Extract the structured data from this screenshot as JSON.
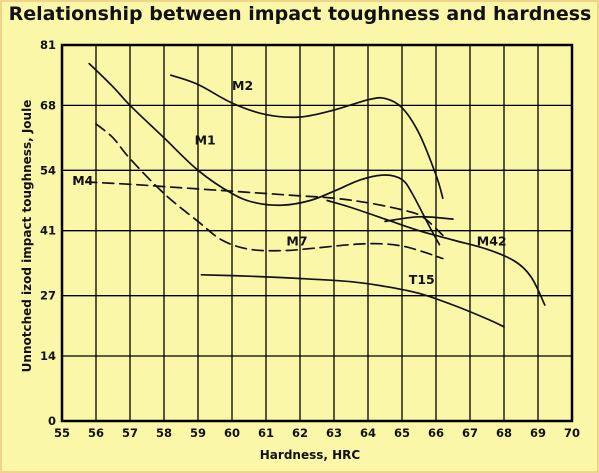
{
  "chart_data": {
    "type": "line",
    "title": "Relationship between impact toughness and hardness",
    "xlabel": "Hardness, HRC",
    "ylabel": "Unnotched izod impact toughness, Joule",
    "xlim": [
      55,
      70
    ],
    "ylim": [
      0,
      81
    ],
    "xticks": [
      55,
      56,
      57,
      58,
      59,
      60,
      61,
      62,
      63,
      64,
      65,
      66,
      67,
      68,
      69,
      70
    ],
    "yticks": [
      0,
      14,
      27,
      41,
      54,
      68,
      81
    ],
    "grid": true,
    "legend": "none",
    "series": [
      {
        "name": "M2",
        "style": "solid",
        "points": [
          [
            58.2,
            74.5
          ],
          [
            59.0,
            72.5
          ],
          [
            60.0,
            68.5
          ],
          [
            61.0,
            66.0
          ],
          [
            62.0,
            65.5
          ],
          [
            63.0,
            67.0
          ],
          [
            64.0,
            69.2
          ],
          [
            64.5,
            69.5
          ],
          [
            65.0,
            67.5
          ],
          [
            65.5,
            62.0
          ],
          [
            66.0,
            53.0
          ],
          [
            66.2,
            48.0
          ]
        ]
      },
      {
        "name": "M1",
        "style": "solid",
        "points": [
          [
            55.8,
            77.0
          ],
          [
            56.5,
            72.0
          ],
          [
            57.0,
            68.0
          ],
          [
            58.0,
            61.0
          ],
          [
            59.0,
            54.0
          ],
          [
            60.0,
            49.0
          ],
          [
            60.7,
            47.0
          ],
          [
            61.5,
            46.5
          ],
          [
            62.3,
            47.5
          ],
          [
            63.0,
            49.5
          ],
          [
            63.8,
            52.0
          ],
          [
            64.5,
            53.0
          ],
          [
            65.0,
            52.0
          ],
          [
            65.3,
            49.0
          ],
          [
            65.8,
            42.0
          ],
          [
            66.1,
            38.0
          ]
        ]
      },
      {
        "name": "M4",
        "style": "dashed",
        "points": [
          [
            55.7,
            51.5
          ],
          [
            57.0,
            51.0
          ],
          [
            58.0,
            50.5
          ],
          [
            59.0,
            50.0
          ],
          [
            60.0,
            49.5
          ],
          [
            61.0,
            49.0
          ],
          [
            62.0,
            48.5
          ],
          [
            63.0,
            48.0
          ],
          [
            64.0,
            47.0
          ],
          [
            65.0,
            45.5
          ],
          [
            65.6,
            44.0
          ],
          [
            66.2,
            40.0
          ]
        ]
      },
      {
        "name": "M7",
        "style": "dashed",
        "points": [
          [
            56.0,
            64.0
          ],
          [
            56.5,
            61.0
          ],
          [
            57.0,
            56.5
          ],
          [
            58.0,
            49.0
          ],
          [
            59.0,
            43.0
          ],
          [
            59.7,
            39.0
          ],
          [
            60.5,
            37.0
          ],
          [
            61.5,
            36.7
          ],
          [
            62.5,
            37.3
          ],
          [
            63.5,
            38.0
          ],
          [
            64.3,
            38.2
          ],
          [
            65.0,
            37.7
          ],
          [
            65.6,
            36.5
          ],
          [
            66.2,
            35.0
          ]
        ]
      },
      {
        "name": "M42",
        "style": "solid",
        "points": [
          [
            62.8,
            47.5
          ],
          [
            63.5,
            46.0
          ],
          [
            64.5,
            43.5
          ],
          [
            65.5,
            41.0
          ],
          [
            66.5,
            39.0
          ],
          [
            67.5,
            37.0
          ],
          [
            68.3,
            34.5
          ],
          [
            68.8,
            31.0
          ],
          [
            69.2,
            25.0
          ]
        ]
      },
      {
        "name": "",
        "style": "solid",
        "points": [
          [
            64.5,
            43.0
          ],
          [
            65.5,
            44.0
          ],
          [
            66.5,
            43.5
          ]
        ]
      },
      {
        "name": "T15",
        "style": "solid",
        "points": [
          [
            59.1,
            31.5
          ],
          [
            60.5,
            31.2
          ],
          [
            62.0,
            30.7
          ],
          [
            63.5,
            30.0
          ],
          [
            64.5,
            29.0
          ],
          [
            65.5,
            27.5
          ],
          [
            66.5,
            25.0
          ],
          [
            67.5,
            22.0
          ],
          [
            68.0,
            20.3
          ]
        ]
      }
    ],
    "labels": [
      {
        "text": "M2",
        "x": 60.0,
        "y": 71.3
      },
      {
        "text": "M1",
        "x": 58.9,
        "y": 59.6
      },
      {
        "text": "M4",
        "x": 55.3,
        "y": 50.8
      },
      {
        "text": "M7",
        "x": 61.6,
        "y": 37.8
      },
      {
        "text": "M42",
        "x": 67.2,
        "y": 37.8
      },
      {
        "text": "T15",
        "x": 65.2,
        "y": 29.5
      }
    ]
  }
}
